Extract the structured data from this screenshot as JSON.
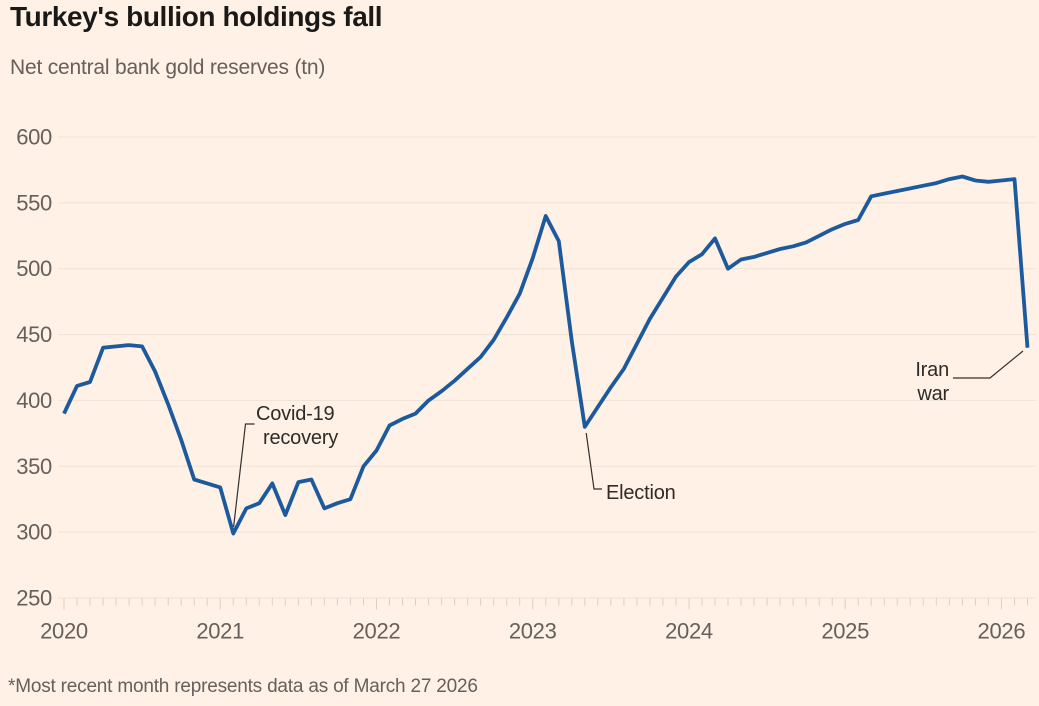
{
  "title": "Turkey's bullion holdings fall",
  "subtitle": "Net central bank gold reserves (tn)",
  "footnote": "*Most recent month represents data as of March 27 2026",
  "colors": {
    "background": "#FFF1E5",
    "line": "#1D5A9D",
    "title_text": "#1B1917",
    "muted_text": "#66605C",
    "gridline": "#F0E1D3",
    "tick": "#DFCEC0",
    "annotation_text": "#2E2B28",
    "leader_line": "#33302E"
  },
  "chart_data": {
    "type": "line",
    "title": "Turkey's bullion holdings fall",
    "subtitle": "Net central bank gold reserves (tn)",
    "unit": "tonnes",
    "x_start": "2020-01",
    "x_interval": "month",
    "x_tick_years": [
      "2020",
      "2021",
      "2022",
      "2023",
      "2024",
      "2025",
      "2026"
    ],
    "ylim": [
      250,
      600
    ],
    "y_ticks": [
      250,
      300,
      350,
      400,
      450,
      500,
      550,
      600
    ],
    "grid": "horizontal",
    "legend": "none",
    "series": [
      {
        "name": "Net central bank gold reserves (tn)",
        "values": [
          390,
          411,
          414,
          440,
          441,
          442,
          441,
          422,
          397,
          370,
          340,
          337,
          334,
          299,
          318,
          322,
          337,
          313,
          338,
          340,
          318,
          322,
          325,
          350,
          362,
          381,
          386,
          390,
          400,
          407,
          415,
          424,
          433,
          446,
          463,
          481,
          508,
          540,
          521,
          445,
          380,
          395,
          410,
          424,
          443,
          462,
          478,
          494,
          505,
          511,
          523,
          500,
          507,
          509,
          512,
          515,
          517,
          520,
          525,
          530,
          534,
          537,
          555,
          557,
          559,
          561,
          563,
          565,
          568,
          570,
          567,
          566,
          567,
          568,
          440
        ]
      }
    ],
    "annotations": [
      {
        "id": "covid",
        "label": [
          "Covid-19",
          "recovery"
        ],
        "point_index": 13,
        "value": 299
      },
      {
        "id": "election",
        "label": [
          "Election"
        ],
        "point_index": 40,
        "value": 380
      },
      {
        "id": "iran",
        "label": [
          "Iran",
          "war"
        ],
        "point_index": 74,
        "value": 440
      }
    ]
  }
}
